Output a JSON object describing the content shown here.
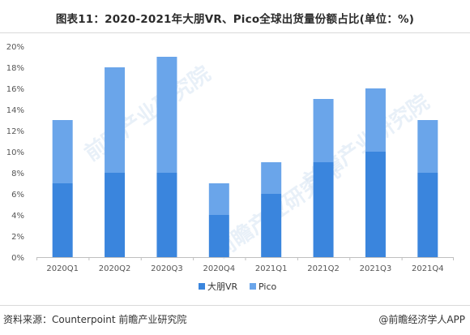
{
  "title": "图表11：2020-2021年大朋VR、Pico全球出货量份额占比(单位：%)",
  "footer": {
    "source": "资料来源：Counterpoint 前瞻产业研究院",
    "brand": "@前瞻经济学人APP"
  },
  "watermark": "前瞻产业研究院",
  "colors": {
    "dapeng": "#3a85dd",
    "pico": "#6aa5ea",
    "axis": "#bfbfbf",
    "text": "#555555"
  },
  "chart_data": {
    "type": "bar",
    "stacked": true,
    "categories": [
      "2020Q1",
      "2020Q2",
      "2020Q3",
      "2020Q4",
      "2021Q1",
      "2021Q2",
      "2021Q3",
      "2021Q4"
    ],
    "series": [
      {
        "name": "大朋VR",
        "values": [
          7,
          8,
          8,
          4,
          6,
          9,
          10,
          8
        ]
      },
      {
        "name": "Pico",
        "values": [
          6,
          10,
          11,
          3,
          3,
          6,
          6,
          5
        ]
      }
    ],
    "ylim": [
      0,
      20
    ],
    "yticks": [
      "0%",
      "2%",
      "4%",
      "6%",
      "8%",
      "10%",
      "12%",
      "14%",
      "16%",
      "18%",
      "20%"
    ],
    "grid": false,
    "legend": "bottom-center"
  }
}
